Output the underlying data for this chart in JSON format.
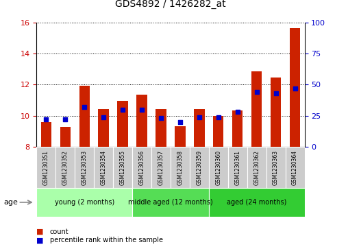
{
  "title": "GDS4892 / 1426282_at",
  "samples": [
    "GSM1230351",
    "GSM1230352",
    "GSM1230353",
    "GSM1230354",
    "GSM1230355",
    "GSM1230356",
    "GSM1230357",
    "GSM1230358",
    "GSM1230359",
    "GSM1230360",
    "GSM1230361",
    "GSM1230362",
    "GSM1230363",
    "GSM1230364"
  ],
  "count_values": [
    9.6,
    9.3,
    11.95,
    10.45,
    10.95,
    11.35,
    10.45,
    9.35,
    10.45,
    10.0,
    10.35,
    12.85,
    12.45,
    15.65
  ],
  "percentile_values": [
    22,
    22,
    32,
    24,
    30,
    30,
    23,
    20,
    24,
    24,
    28,
    44,
    43,
    47
  ],
  "ylim_left": [
    8,
    16
  ],
  "ylim_right": [
    0,
    100
  ],
  "yticks_left": [
    8,
    10,
    12,
    14,
    16
  ],
  "yticks_right": [
    0,
    25,
    50,
    75,
    100
  ],
  "groups": [
    {
      "label": "young (2 months)",
      "start": 0,
      "end": 5,
      "color": "#AAFFAA"
    },
    {
      "label": "middle aged (12 months)",
      "start": 5,
      "end": 9,
      "color": "#55DD55"
    },
    {
      "label": "aged (24 months)",
      "start": 9,
      "end": 14,
      "color": "#33CC33"
    }
  ],
  "bar_color": "#CC2200",
  "dot_color": "#0000CC",
  "bar_bottom": 8,
  "bar_width": 0.55,
  "dot_size": 18,
  "grid_color": "#000000",
  "background_color": "#FFFFFF",
  "tick_color_left": "#CC0000",
  "tick_color_right": "#0000CC",
  "legend_labels": [
    "count",
    "percentile rank within the sample"
  ],
  "age_label": "age",
  "sample_bg_color": "#CCCCCC",
  "sample_fg_color": "#000000",
  "sample_fontsize": 5.5,
  "group_fontsize": 7.0,
  "title_fontsize": 10
}
